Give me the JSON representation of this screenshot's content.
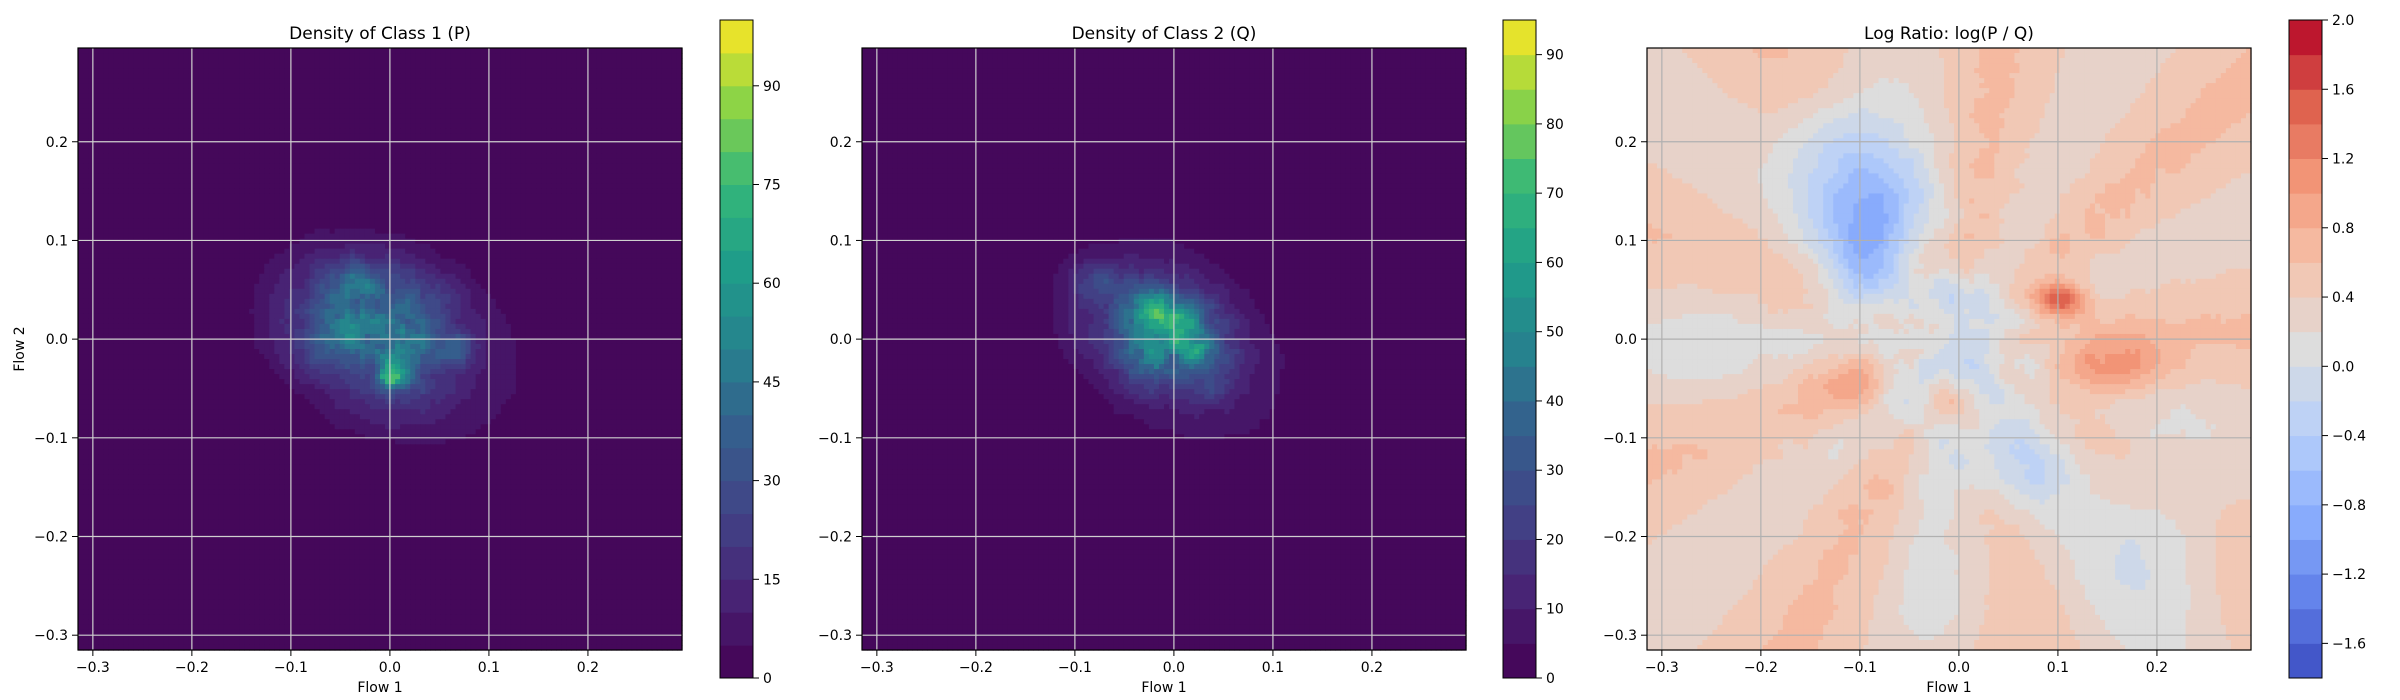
{
  "chart_data": [
    {
      "type": "heatmap",
      "title": "Density of Class 1 (P)",
      "xlabel": "Flow 1",
      "ylabel": "Flow 2",
      "xlim": [
        -0.315,
        0.295
      ],
      "ylim": [
        -0.315,
        0.295
      ],
      "xticks": [
        -0.3,
        -0.2,
        -0.1,
        0.0,
        0.1,
        0.2
      ],
      "yticks": [
        -0.3,
        -0.2,
        -0.1,
        0.0,
        0.1,
        0.2
      ],
      "xtick_labels": [
        "−0.3",
        "−0.2",
        "−0.1",
        "0.0",
        "0.1",
        "0.2"
      ],
      "ytick_labels": [
        "−0.3",
        "−0.2",
        "−0.1",
        "0.0",
        "0.1",
        "0.2"
      ],
      "grid": true,
      "colormap": "viridis",
      "colorbar": {
        "min": 0,
        "max": 100,
        "levels": 20,
        "ticks": [
          0,
          15,
          30,
          45,
          60,
          75,
          90
        ],
        "tick_labels": [
          "0",
          "15",
          "30",
          "45",
          "60",
          "75",
          "90"
        ]
      },
      "density": {
        "outer_extent": {
          "center": [
            0.0,
            0.0
          ],
          "half_width": [
            0.17,
            0.12
          ],
          "rotation_deg": -28,
          "value": 5
        },
        "blobs": [
          {
            "x": -0.03,
            "y": 0.03,
            "sx": 0.07,
            "sy": 0.045,
            "peak": 22
          },
          {
            "x": 0.01,
            "y": -0.03,
            "sx": 0.05,
            "sy": 0.04,
            "peak": 20
          },
          {
            "x": -0.035,
            "y": 0.055,
            "sx": 0.025,
            "sy": 0.02,
            "peak": 25
          },
          {
            "x": 0.002,
            "y": -0.04,
            "sx": 0.012,
            "sy": 0.01,
            "peak": 40
          },
          {
            "x": 0.015,
            "y": 0.005,
            "sx": 0.02,
            "sy": 0.018,
            "peak": 18
          },
          {
            "x": 0.065,
            "y": -0.01,
            "sx": 0.012,
            "sy": 0.01,
            "peak": 22
          },
          {
            "x": -0.05,
            "y": 0.005,
            "sx": 0.02,
            "sy": 0.015,
            "peak": 14
          },
          {
            "x": 0.04,
            "y": 0.05,
            "sx": 0.02,
            "sy": 0.015,
            "peak": 10
          },
          {
            "x": -0.08,
            "y": -0.02,
            "sx": 0.02,
            "sy": 0.02,
            "peak": 8
          }
        ]
      }
    },
    {
      "type": "heatmap",
      "title": "Density of Class 2 (Q)",
      "xlabel": "Flow 1",
      "ylabel": "",
      "xlim": [
        -0.315,
        0.295
      ],
      "ylim": [
        -0.315,
        0.295
      ],
      "xticks": [
        -0.3,
        -0.2,
        -0.1,
        0.0,
        0.1,
        0.2
      ],
      "yticks": [
        -0.3,
        -0.2,
        -0.1,
        0.0,
        0.1,
        0.2
      ],
      "xtick_labels": [
        "−0.3",
        "−0.2",
        "−0.1",
        "0.0",
        "0.1",
        "0.2"
      ],
      "ytick_labels": [
        "−0.3",
        "−0.2",
        "−0.1",
        "0.0",
        "0.1",
        "0.2"
      ],
      "grid": true,
      "colormap": "viridis",
      "colorbar": {
        "min": 0,
        "max": 95,
        "levels": 19,
        "ticks": [
          0,
          10,
          20,
          30,
          40,
          50,
          60,
          70,
          80,
          90
        ],
        "tick_labels": [
          "0",
          "10",
          "20",
          "30",
          "40",
          "50",
          "60",
          "70",
          "80",
          "90"
        ]
      },
      "density": {
        "outer_extent": {
          "center": [
            0.0,
            0.0
          ],
          "half_width": [
            0.16,
            0.1
          ],
          "rotation_deg": -40,
          "value": 5
        },
        "blobs": [
          {
            "x": -0.02,
            "y": 0.0,
            "sx": 0.07,
            "sy": 0.05,
            "peak": 22
          },
          {
            "x": 0.0,
            "y": 0.01,
            "sx": 0.03,
            "sy": 0.03,
            "peak": 20
          },
          {
            "x": -0.01,
            "y": 0.03,
            "sx": 0.015,
            "sy": 0.012,
            "peak": 30
          },
          {
            "x": 0.02,
            "y": -0.005,
            "sx": 0.015,
            "sy": 0.012,
            "peak": 26
          },
          {
            "x": -0.03,
            "y": -0.02,
            "sx": 0.015,
            "sy": 0.015,
            "peak": 20
          },
          {
            "x": -0.09,
            "y": 0.06,
            "sx": 0.02,
            "sy": 0.015,
            "peak": 16
          },
          {
            "x": -0.05,
            "y": 0.05,
            "sx": 0.02,
            "sy": 0.02,
            "peak": 14
          },
          {
            "x": 0.04,
            "y": -0.04,
            "sx": 0.02,
            "sy": 0.02,
            "peak": 10
          }
        ]
      }
    },
    {
      "type": "heatmap",
      "title": "Log Ratio: log(P / Q)",
      "xlabel": "Flow 1",
      "ylabel": "",
      "xlim": [
        -0.315,
        0.295
      ],
      "ylim": [
        -0.315,
        0.295
      ],
      "xticks": [
        -0.3,
        -0.2,
        -0.1,
        0.0,
        0.1,
        0.2
      ],
      "yticks": [
        -0.3,
        -0.2,
        -0.1,
        0.0,
        0.1,
        0.2
      ],
      "xtick_labels": [
        "−0.3",
        "−0.2",
        "−0.1",
        "0.0",
        "0.1",
        "0.2"
      ],
      "ytick_labels": [
        "−0.3",
        "−0.2",
        "−0.1",
        "0.0",
        "0.1",
        "0.2"
      ],
      "grid": true,
      "colormap": "coolwarm",
      "colorbar": {
        "min": -1.8,
        "max": 2.0,
        "levels": 19,
        "ticks": [
          -1.6,
          -1.2,
          -0.8,
          -0.4,
          0.0,
          0.4,
          0.8,
          1.2,
          1.6,
          2.0
        ],
        "tick_labels": [
          "−1.6",
          "−1.2",
          "−0.8",
          "−0.4",
          "0.0",
          "0.4",
          "0.8",
          "1.2",
          "1.6",
          "2.0"
        ]
      },
      "log_ratio": {
        "background": 0.45,
        "blobs": [
          {
            "x": -0.1,
            "y": 0.15,
            "sx": 0.04,
            "sy": 0.05,
            "peak": -0.9
          },
          {
            "x": -0.08,
            "y": 0.12,
            "sx": 0.03,
            "sy": 0.03,
            "peak": -0.7
          },
          {
            "x": -0.1,
            "y": 0.06,
            "sx": 0.03,
            "sy": 0.03,
            "peak": -0.6
          },
          {
            "x": 0.0,
            "y": 0.04,
            "sx": 0.04,
            "sy": 0.02,
            "peak": -0.5
          },
          {
            "x": 0.03,
            "y": -0.02,
            "sx": 0.04,
            "sy": 0.03,
            "peak": -0.6
          },
          {
            "x": -0.05,
            "y": -0.05,
            "sx": 0.03,
            "sy": 0.03,
            "peak": -0.5
          },
          {
            "x": 0.05,
            "y": -0.12,
            "sx": 0.05,
            "sy": 0.04,
            "peak": -0.6
          },
          {
            "x": -0.13,
            "y": 0.2,
            "sx": 0.04,
            "sy": 0.04,
            "peak": -0.4
          },
          {
            "x": 0.1,
            "y": 0.04,
            "sx": 0.02,
            "sy": 0.012,
            "peak": 1.3
          },
          {
            "x": 0.15,
            "y": -0.03,
            "sx": 0.04,
            "sy": 0.02,
            "peak": 0.7
          },
          {
            "x": -0.1,
            "y": -0.05,
            "sx": 0.03,
            "sy": 0.02,
            "peak": 0.5
          },
          {
            "x": -0.01,
            "y": -0.06,
            "sx": 0.015,
            "sy": 0.015,
            "peak": 0.6
          },
          {
            "x": 0.05,
            "y": -0.02,
            "sx": 0.015,
            "sy": 0.02,
            "peak": 0.5
          },
          {
            "x": 0.2,
            "y": -0.2,
            "sx": 0.05,
            "sy": 0.07,
            "peak": -0.45
          },
          {
            "x": -0.25,
            "y": 0.0,
            "sx": 0.06,
            "sy": 0.06,
            "peak": -0.2
          },
          {
            "x": 0.0,
            "y": -0.25,
            "sx": 0.05,
            "sy": 0.05,
            "peak": -0.2
          }
        ]
      }
    }
  ]
}
